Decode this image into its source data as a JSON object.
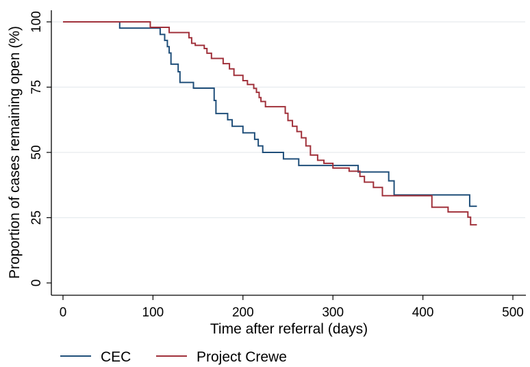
{
  "chart_data": {
    "type": "line",
    "title": "",
    "xlabel": "Time after referral (days)",
    "ylabel": "Proportion of cases remaining open (%)",
    "xlim": [
      0,
      510
    ],
    "ylim": [
      -4,
      103
    ],
    "xticks": [
      0,
      100,
      200,
      300,
      400,
      500
    ],
    "yticks": [
      0,
      25,
      50,
      75,
      100
    ],
    "grid": "horizontal",
    "legend_position": "bottom",
    "series": [
      {
        "name": "CEC",
        "color": "#1f4e79",
        "step": true,
        "x": [
          0,
          63,
          108,
          113,
          116,
          118,
          120,
          122,
          128,
          130,
          145,
          168,
          170,
          183,
          188,
          200,
          213,
          217,
          222,
          245,
          262,
          323,
          328,
          362,
          368,
          452,
          460
        ],
        "y": [
          100,
          97.6,
          95.2,
          92.9,
          90.5,
          88.1,
          83.8,
          83.8,
          80.9,
          76.8,
          74.6,
          69.9,
          64.9,
          62.5,
          60,
          57.5,
          55,
          52.5,
          50,
          47.5,
          45,
          45,
          42.5,
          39.1,
          33.7,
          29.4,
          29.4
        ]
      },
      {
        "name": "Project Crewe",
        "color": "#a0303a",
        "step": true,
        "x": [
          0,
          97,
          118,
          140,
          143,
          147,
          157,
          160,
          165,
          178,
          185,
          190,
          200,
          205,
          212,
          215,
          218,
          220,
          225,
          235,
          247,
          250,
          255,
          260,
          265,
          270,
          275,
          283,
          290,
          300,
          318,
          323,
          330,
          335,
          345,
          355,
          365,
          378,
          405,
          410,
          428,
          450,
          453,
          460
        ],
        "y": [
          100,
          97.9,
          95.9,
          93.9,
          91.8,
          91,
          89.8,
          88,
          86,
          84,
          82,
          79.5,
          77.5,
          76,
          74.5,
          73,
          71,
          69.5,
          67.5,
          67.5,
          65,
          62.2,
          60,
          58,
          55.6,
          52.5,
          49,
          47,
          45.8,
          44,
          42.8,
          42.8,
          40.8,
          38.6,
          36.6,
          33.4,
          33.4,
          33.4,
          33.4,
          29,
          27.2,
          25.2,
          22.3,
          22.3
        ]
      }
    ]
  }
}
